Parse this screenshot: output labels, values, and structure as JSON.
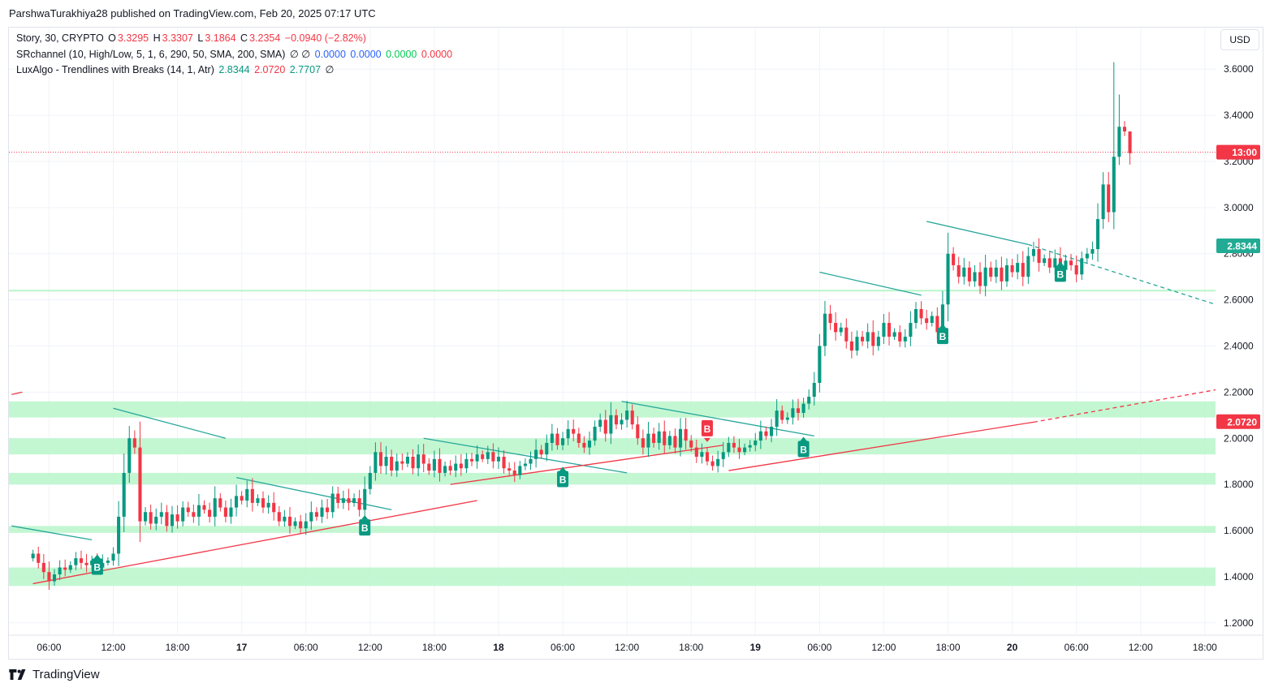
{
  "publisher_line": "ParshwaTurakhiya28 published on TradingView.com, Feb 20, 2025 07:17 UTC",
  "legend": {
    "symbol": "Story, 30, CRYPTO",
    "o_label": "O",
    "o_value": "3.3295",
    "h_label": "H",
    "h_value": "3.3307",
    "l_label": "L",
    "l_value": "3.1864",
    "c_label": "C",
    "c_value": "3.2354",
    "change": "−0.0940 (−2.82%)",
    "srchannel_label": "SRchannel (10, High/Low, 5, 1, 6, 290, 50, SMA, 200, SMA)",
    "srchannel_symbols": "∅  ∅",
    "srchannel_values": [
      "0.0000",
      "0.0000",
      "0.0000",
      "0.0000"
    ],
    "luxalgo_label": "LuxAlgo - Trendlines with Breaks (14, 1, Atr)",
    "luxalgo_values": [
      "2.8344",
      "2.0720",
      "2.7707"
    ],
    "luxalgo_symbol": "∅"
  },
  "currency_button": "USD",
  "price_tags": {
    "current": "13:00",
    "upper_trend": "2.8344",
    "lower_trend": "2.0720"
  },
  "brand": "TradingView",
  "colors": {
    "up": "#089981",
    "down": "#f23645",
    "sr_zone": "#b9f6ca",
    "trend_down": "#26a69a",
    "trend_up": "#f23645",
    "break_up_label": "#089981",
    "break_down_label": "#f23645"
  },
  "chart_data": {
    "type": "candlestick",
    "timeframe": "30",
    "currency": "USD",
    "ylim": [
      1.15,
      3.78
    ],
    "y_ticks": [
      1.2,
      1.4,
      1.6,
      1.8,
      2.0,
      2.2,
      2.4,
      2.6,
      2.8,
      3.0,
      3.2,
      3.4,
      3.6
    ],
    "y_tick_labels": [
      "1.2000",
      "1.4000",
      "1.6000",
      "1.8000",
      "2.0000",
      "2.2000",
      "2.4000",
      "2.6000",
      "2.8000",
      "3.0000",
      "3.2000",
      "3.4000",
      "3.6000"
    ],
    "x_ticks": [
      {
        "t": 3,
        "label": "06:00"
      },
      {
        "t": 15,
        "label": "12:00"
      },
      {
        "t": 27,
        "label": "18:00"
      },
      {
        "t": 39,
        "label": "17"
      },
      {
        "t": 51,
        "label": "06:00"
      },
      {
        "t": 63,
        "label": "12:00"
      },
      {
        "t": 75,
        "label": "18:00"
      },
      {
        "t": 87,
        "label": "18"
      },
      {
        "t": 99,
        "label": "06:00"
      },
      {
        "t": 111,
        "label": "12:00"
      },
      {
        "t": 123,
        "label": "18:00"
      },
      {
        "t": 135,
        "label": "19"
      },
      {
        "t": 147,
        "label": "06:00"
      },
      {
        "t": 159,
        "label": "12:00"
      },
      {
        "t": 171,
        "label": "18:00"
      },
      {
        "t": 183,
        "label": "20"
      },
      {
        "t": 195,
        "label": "06:00"
      },
      {
        "t": 207,
        "label": "12:00"
      },
      {
        "t": 219,
        "label": "18:00"
      }
    ],
    "bold_x_labels": [
      "17",
      "18",
      "19",
      "20"
    ],
    "x_range": [
      -4.5,
      221
    ],
    "closes": [
      1.5,
      1.46,
      1.42,
      1.38,
      1.41,
      1.44,
      1.43,
      1.45,
      1.48,
      1.46,
      1.45,
      1.47,
      1.44,
      1.46,
      1.47,
      1.5,
      1.66,
      1.85,
      2.0,
      1.96,
      1.64,
      1.68,
      1.63,
      1.66,
      1.68,
      1.62,
      1.67,
      1.64,
      1.7,
      1.68,
      1.66,
      1.71,
      1.69,
      1.66,
      1.74,
      1.7,
      1.66,
      1.7,
      1.75,
      1.73,
      1.78,
      1.72,
      1.74,
      1.7,
      1.72,
      1.68,
      1.64,
      1.66,
      1.62,
      1.64,
      1.61,
      1.64,
      1.68,
      1.66,
      1.7,
      1.68,
      1.76,
      1.72,
      1.74,
      1.72,
      1.74,
      1.69,
      1.78,
      1.85,
      1.94,
      1.88,
      1.92,
      1.86,
      1.9,
      1.89,
      1.92,
      1.87,
      1.93,
      1.89,
      1.86,
      1.91,
      1.85,
      1.88,
      1.86,
      1.89,
      1.87,
      1.91,
      1.9,
      1.93,
      1.91,
      1.94,
      1.9,
      1.92,
      1.87,
      1.86,
      1.84,
      1.88,
      1.89,
      1.91,
      1.95,
      1.93,
      1.98,
      2.02,
      1.97,
      2.0,
      2.04,
      2.02,
      1.98,
      1.96,
      1.99,
      2.05,
      2.08,
      2.02,
      2.1,
      2.06,
      2.08,
      2.12,
      2.06,
      2.0,
      1.96,
      2.02,
      1.98,
      2.03,
      1.97,
      2.01,
      1.96,
      2.04,
      1.99,
      1.96,
      1.92,
      1.94,
      1.9,
      1.88,
      1.91,
      1.94,
      1.98,
      1.96,
      1.94,
      1.96,
      1.97,
      1.99,
      2.03,
      2.01,
      2.05,
      2.12,
      2.08,
      2.09,
      2.13,
      2.11,
      2.15,
      2.18,
      2.24,
      2.4,
      2.54,
      2.5,
      2.46,
      2.48,
      2.42,
      2.38,
      2.44,
      2.42,
      2.46,
      2.4,
      2.44,
      2.5,
      2.44,
      2.46,
      2.42,
      2.44,
      2.5,
      2.56,
      2.52,
      2.5,
      2.53,
      2.46,
      2.58,
      2.8,
      2.75,
      2.7,
      2.74,
      2.68,
      2.72,
      2.66,
      2.74,
      2.7,
      2.74,
      2.68,
      2.75,
      2.72,
      2.76,
      2.7,
      2.79,
      2.82,
      2.76,
      2.78,
      2.74,
      2.78,
      2.73,
      2.77,
      2.75,
      2.71,
      2.78,
      2.8,
      2.82,
      2.95,
      3.1,
      2.98,
      3.22,
      3.35,
      3.33,
      3.24
    ],
    "final_candle": {
      "open": 3.3295,
      "high": 3.3307,
      "low": 3.1864,
      "close": 3.2354
    },
    "spike_high": 3.63,
    "sr_zones": [
      [
        1.36,
        1.44
      ],
      [
        1.59,
        1.62
      ],
      [
        1.8,
        1.85
      ],
      [
        1.93,
        2.0
      ],
      [
        2.09,
        2.16
      ]
    ],
    "sr_line": 2.64,
    "current_price_line": 3.24,
    "trendlines_down": [
      {
        "t1": -4,
        "y1": 1.62,
        "t2": 11,
        "y2": 1.56
      },
      {
        "t1": 15,
        "y1": 2.13,
        "t2": 36,
        "y2": 2.0
      },
      {
        "t1": 38,
        "y1": 1.83,
        "t2": 67,
        "y2": 1.69
      },
      {
        "t1": 73,
        "y1": 2.0,
        "t2": 111,
        "y2": 1.85
      },
      {
        "t1": 110,
        "y1": 2.16,
        "t2": 146,
        "y2": 2.01
      },
      {
        "t1": 147,
        "y1": 2.72,
        "t2": 166,
        "y2": 2.62
      },
      {
        "t1": 167,
        "y1": 2.94,
        "t2": 186,
        "y2": 2.84
      }
    ],
    "trendline_down_extension": {
      "t1": 186,
      "y1": 2.84,
      "t2": 221,
      "y2": 2.58
    },
    "trendlines_up": [
      {
        "t1": -4,
        "y1": 2.19,
        "t2": -2,
        "y2": 2.2
      },
      {
        "t1": 0,
        "y1": 1.37,
        "t2": 83,
        "y2": 1.73
      },
      {
        "t1": 78,
        "y1": 1.8,
        "t2": 129,
        "y2": 1.97
      },
      {
        "t1": 130,
        "y1": 1.86,
        "t2": 187,
        "y2": 2.07
      }
    ],
    "trendline_up_extension": {
      "t1": 187,
      "y1": 2.07,
      "t2": 221,
      "y2": 2.21
    },
    "break_labels": [
      {
        "t": 12,
        "text": "B",
        "kind": "up",
        "y": 1.44
      },
      {
        "t": 62,
        "text": "B",
        "kind": "up",
        "y": 1.61
      },
      {
        "t": 99,
        "text": "B",
        "kind": "up",
        "y": 1.82
      },
      {
        "t": 126,
        "text": "B",
        "kind": "down",
        "y": 2.04
      },
      {
        "t": 144,
        "text": "B",
        "kind": "up",
        "y": 1.95
      },
      {
        "t": 170,
        "text": "B",
        "kind": "up",
        "y": 2.44
      },
      {
        "t": 192,
        "text": "B",
        "kind": "up",
        "y": 2.71
      }
    ]
  }
}
